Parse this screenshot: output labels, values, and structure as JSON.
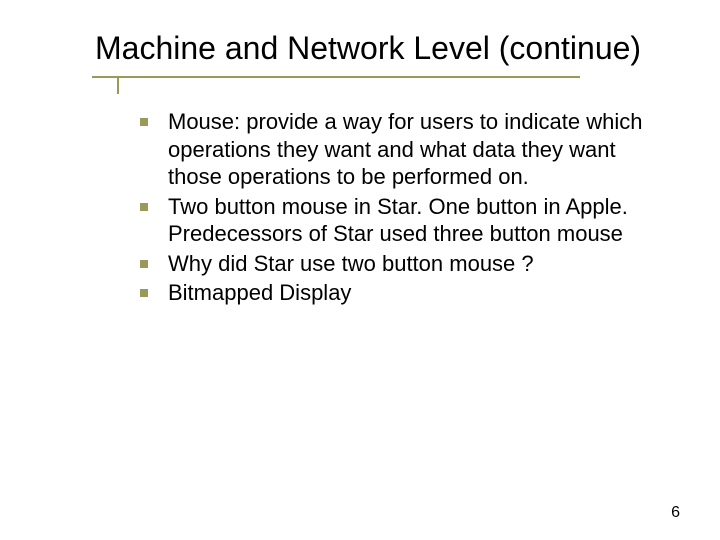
{
  "slide": {
    "title": "Machine and Network Level (continue)",
    "bullets": [
      "Mouse: provide a way for users to indicate which operations they want and what data they want those operations to be performed on.",
      "Two button mouse in Star. One button in Apple.  Predecessors of Star used three button mouse",
      "Why  did Star use two button mouse ?",
      "Bitmapped Display"
    ],
    "page_number": "6"
  },
  "style": {
    "background_color": "#ffffff",
    "title_color": "#000000",
    "title_fontsize": 32,
    "body_color": "#000000",
    "body_fontsize": 22,
    "accent_color": "#9a9a58",
    "bullet_marker": "square",
    "bullet_size": 8,
    "font_family": "Verdana"
  }
}
